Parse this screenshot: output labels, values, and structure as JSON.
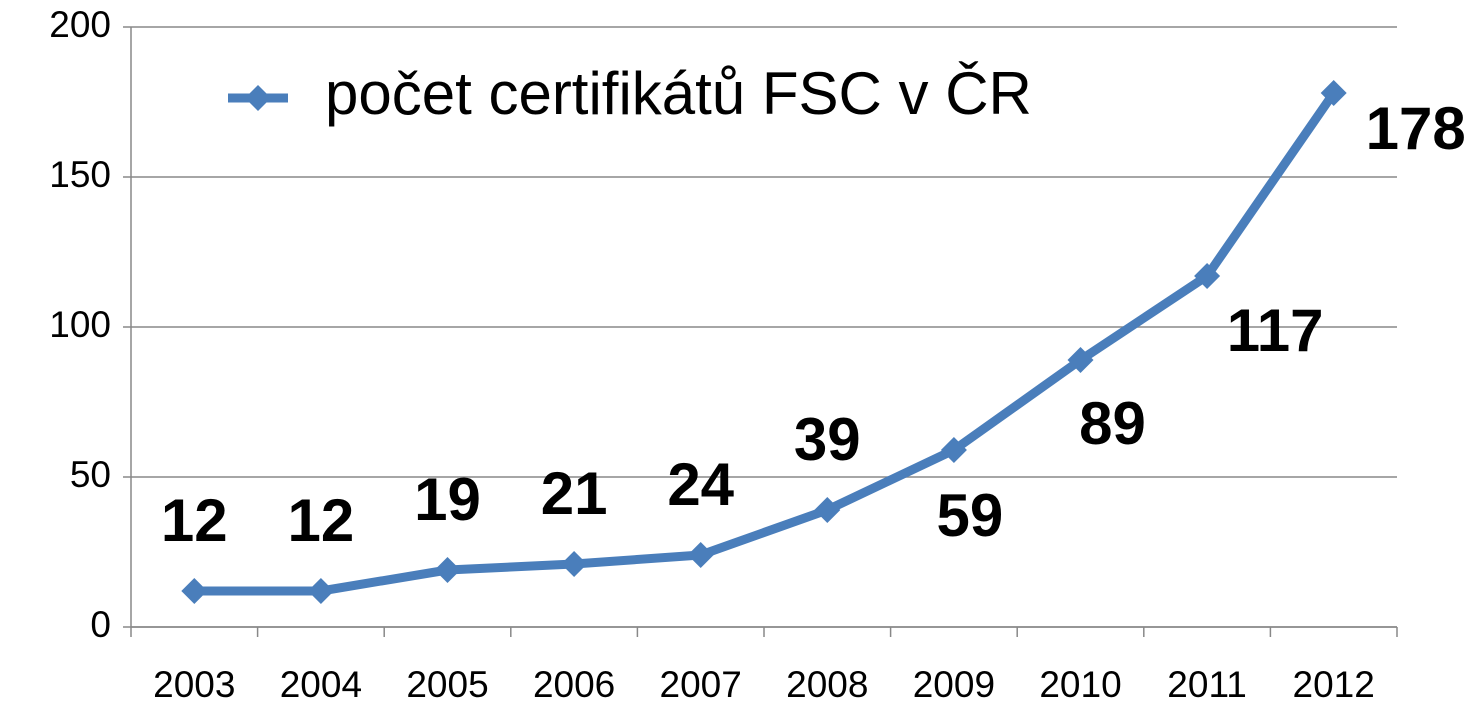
{
  "chart_data": {
    "type": "line",
    "categories": [
      "2003",
      "2004",
      "2005",
      "2006",
      "2007",
      "2008",
      "2009",
      "2010",
      "2011",
      "2012"
    ],
    "series": [
      {
        "name": "počet certifikátů FSC v ČR",
        "color": "#4a7ebb",
        "values": [
          12,
          12,
          19,
          21,
          24,
          39,
          59,
          89,
          117,
          178
        ]
      }
    ],
    "ylim": [
      0,
      200
    ],
    "yticks": [
      0,
      50,
      100,
      150,
      200
    ],
    "grid": true,
    "legend": "top-left"
  }
}
